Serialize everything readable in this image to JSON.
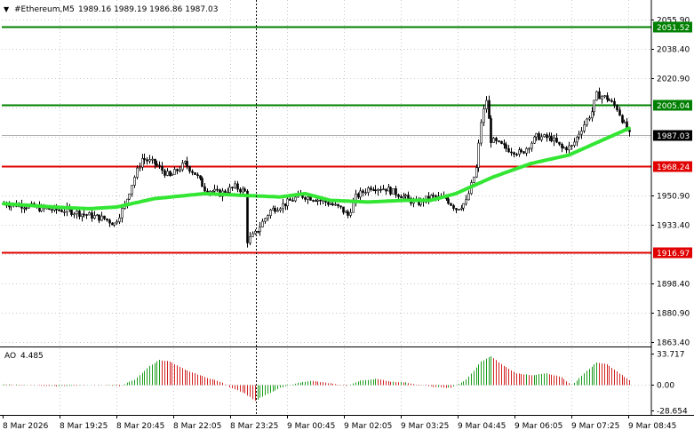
{
  "header": {
    "dropdown_arrow": "▼",
    "symbol": "#Ethereum,M5",
    "ohlc": "1989.16 1989.19 1986.86 1987.03"
  },
  "colors": {
    "background": "#ffffff",
    "grid": "#c8c8c8",
    "candle": "#000000",
    "ma": "#33e633",
    "support_level": "#e00000",
    "resistance_level": "#008000",
    "ao_up": "#1a9c1a",
    "ao_down": "#d22222"
  },
  "chart_data": {
    "type": "candlestick",
    "indicator_ma": "moving average (green)",
    "price_axis": {
      "labels": [
        "2055.90",
        "2038.40",
        "2020.90",
        "1950.90",
        "1933.40",
        "1898.40",
        "1880.90",
        "1863.40"
      ],
      "ylim": [
        1863.4,
        2055.9
      ]
    },
    "horizontal_levels": [
      {
        "value": 2051.52,
        "label": "2051.52",
        "kind": "resistance"
      },
      {
        "value": 2005.04,
        "label": "2005.04",
        "kind": "resistance"
      },
      {
        "value": 1968.24,
        "label": "1968.24",
        "kind": "support"
      },
      {
        "value": 1916.97,
        "label": "1916.97",
        "kind": "support"
      }
    ],
    "current_price": {
      "value": 1987.03,
      "label": "1987.03"
    },
    "time_axis": {
      "labels": [
        "8 Mar 2026",
        "8 Mar 19:25",
        "8 Mar 20:45",
        "8 Mar 22:05",
        "8 Mar 23:25",
        "9 Mar 00:45",
        "9 Mar 02:05",
        "9 Mar 03:25",
        "9 Mar 04:45",
        "9 Mar 06:05",
        "9 Mar 07:25",
        "9 Mar 08:45"
      ]
    },
    "anchors": [
      [
        0,
        1946
      ],
      [
        8,
        1945
      ],
      [
        15,
        1943
      ],
      [
        25,
        1942
      ],
      [
        34,
        1939
      ],
      [
        40,
        1937
      ],
      [
        44,
        1934
      ],
      [
        48,
        1945
      ],
      [
        52,
        1962
      ],
      [
        55,
        1973
      ],
      [
        60,
        1970
      ],
      [
        66,
        1962
      ],
      [
        72,
        1970
      ],
      [
        76,
        1964
      ],
      [
        80,
        1955
      ],
      [
        86,
        1952
      ],
      [
        92,
        1956
      ],
      [
        96,
        1953
      ],
      [
        97,
        1924
      ],
      [
        100,
        1928
      ],
      [
        106,
        1942
      ],
      [
        112,
        1946
      ],
      [
        118,
        1951
      ],
      [
        124,
        1949
      ],
      [
        130,
        1946
      ],
      [
        134,
        1943
      ],
      [
        137,
        1939
      ],
      [
        140,
        1950
      ],
      [
        146,
        1956
      ],
      [
        152,
        1955
      ],
      [
        158,
        1951
      ],
      [
        164,
        1946
      ],
      [
        170,
        1950
      ],
      [
        176,
        1949
      ],
      [
        180,
        1943
      ],
      [
        184,
        1947
      ],
      [
        188,
        1967
      ],
      [
        190,
        1995
      ],
      [
        192,
        2008
      ],
      [
        194,
        1984
      ],
      [
        200,
        1979
      ],
      [
        206,
        1976
      ],
      [
        212,
        1986
      ],
      [
        218,
        1985
      ],
      [
        222,
        1979
      ],
      [
        226,
        1980
      ],
      [
        230,
        1991
      ],
      [
        234,
        2001
      ],
      [
        236,
        2011
      ],
      [
        240,
        2009
      ],
      [
        244,
        2003
      ],
      [
        247,
        1993
      ],
      [
        249,
        1987
      ]
    ],
    "ma_anchors": [
      [
        0,
        1946
      ],
      [
        20,
        1944
      ],
      [
        34,
        1943
      ],
      [
        45,
        1944
      ],
      [
        60,
        1949
      ],
      [
        80,
        1952
      ],
      [
        95,
        1951
      ],
      [
        110,
        1950
      ],
      [
        120,
        1952
      ],
      [
        130,
        1948
      ],
      [
        145,
        1947
      ],
      [
        160,
        1948
      ],
      [
        170,
        1948
      ],
      [
        180,
        1952
      ],
      [
        195,
        1962
      ],
      [
        210,
        1970
      ],
      [
        225,
        1975
      ],
      [
        240,
        1985
      ],
      [
        249,
        1991
      ]
    ],
    "ao": {
      "label": "AO",
      "value_label": "4.485",
      "axis_labels": [
        "33.717",
        "0.00",
        "-28.654"
      ],
      "ylim": [
        -28.654,
        33.717
      ],
      "anchors": [
        [
          0,
          0
        ],
        [
          12,
          -1
        ],
        [
          20,
          -2
        ],
        [
          28,
          -1.5
        ],
        [
          34,
          -1
        ],
        [
          40,
          -1
        ],
        [
          46,
          -2
        ],
        [
          52,
          5
        ],
        [
          58,
          20
        ],
        [
          62,
          27
        ],
        [
          66,
          25
        ],
        [
          72,
          16
        ],
        [
          76,
          12
        ],
        [
          80,
          8
        ],
        [
          86,
          3
        ],
        [
          90,
          -3
        ],
        [
          96,
          -10
        ],
        [
          100,
          -18
        ],
        [
          104,
          -12
        ],
        [
          110,
          -4
        ],
        [
          116,
          1
        ],
        [
          122,
          4
        ],
        [
          130,
          1
        ],
        [
          136,
          -2
        ],
        [
          142,
          4
        ],
        [
          148,
          6
        ],
        [
          154,
          3
        ],
        [
          160,
          2
        ],
        [
          166,
          -1
        ],
        [
          172,
          -3
        ],
        [
          178,
          -4
        ],
        [
          184,
          5
        ],
        [
          190,
          25
        ],
        [
          194,
          31
        ],
        [
          198,
          22
        ],
        [
          204,
          12
        ],
        [
          210,
          10
        ],
        [
          216,
          12
        ],
        [
          222,
          8
        ],
        [
          226,
          -1
        ],
        [
          232,
          15
        ],
        [
          236,
          24
        ],
        [
          240,
          22
        ],
        [
          245,
          12
        ],
        [
          249,
          4.5
        ]
      ]
    }
  }
}
